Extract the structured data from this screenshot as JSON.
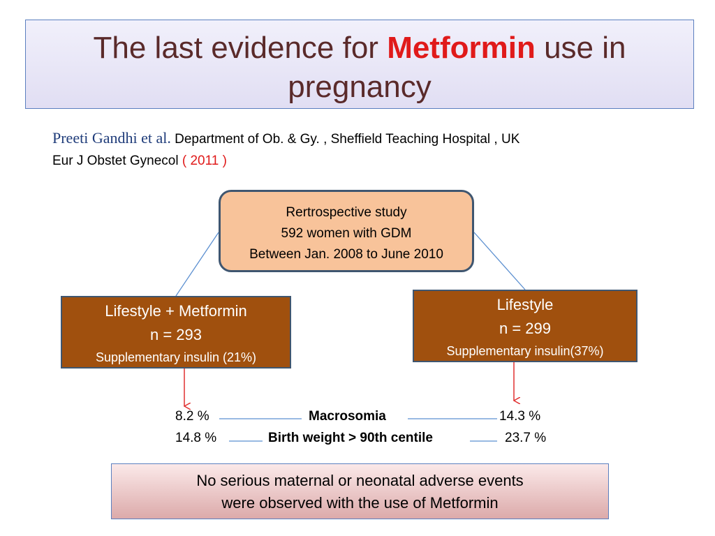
{
  "title": {
    "before": "The last evidence for ",
    "highlight": "Metformin",
    "after": " use in pregnancy"
  },
  "citation": {
    "author": "Preeti Gandhi et al.",
    "department": " Department of Ob. & Gy. , Sheffield Teaching Hospital , UK",
    "journal": "Eur J Obstet Gynecol ",
    "year": "( 2011 )"
  },
  "study": {
    "line1": "Rertrospective study",
    "line2": "592 women with GDM",
    "line3": "Between Jan. 2008 to June 2010"
  },
  "arms": {
    "left": {
      "name": "Lifestyle + Metformin",
      "n": "n = 293",
      "insulin": "Supplementary insulin (21%)"
    },
    "right": {
      "name": "Lifestyle",
      "n": "n = 299",
      "insulin": "Supplementary insulin(37%)"
    }
  },
  "outcomes": [
    {
      "left": "8.2 %",
      "label": "Macrosomia",
      "right": "14.3 %"
    },
    {
      "left": "14.8 %",
      "label": "Birth weight > 90th centile",
      "right": "23.7 %"
    }
  ],
  "conclusion": {
    "line1": "No serious maternal or neonatal adverse events",
    "line2": "were observed with the use of Metformin"
  },
  "colors": {
    "highlight": "#e01a1a",
    "study_box": "#f8c39a",
    "arm_box": "#a0500e",
    "connector": "#5b8fd0",
    "arrow": "#e03030"
  }
}
